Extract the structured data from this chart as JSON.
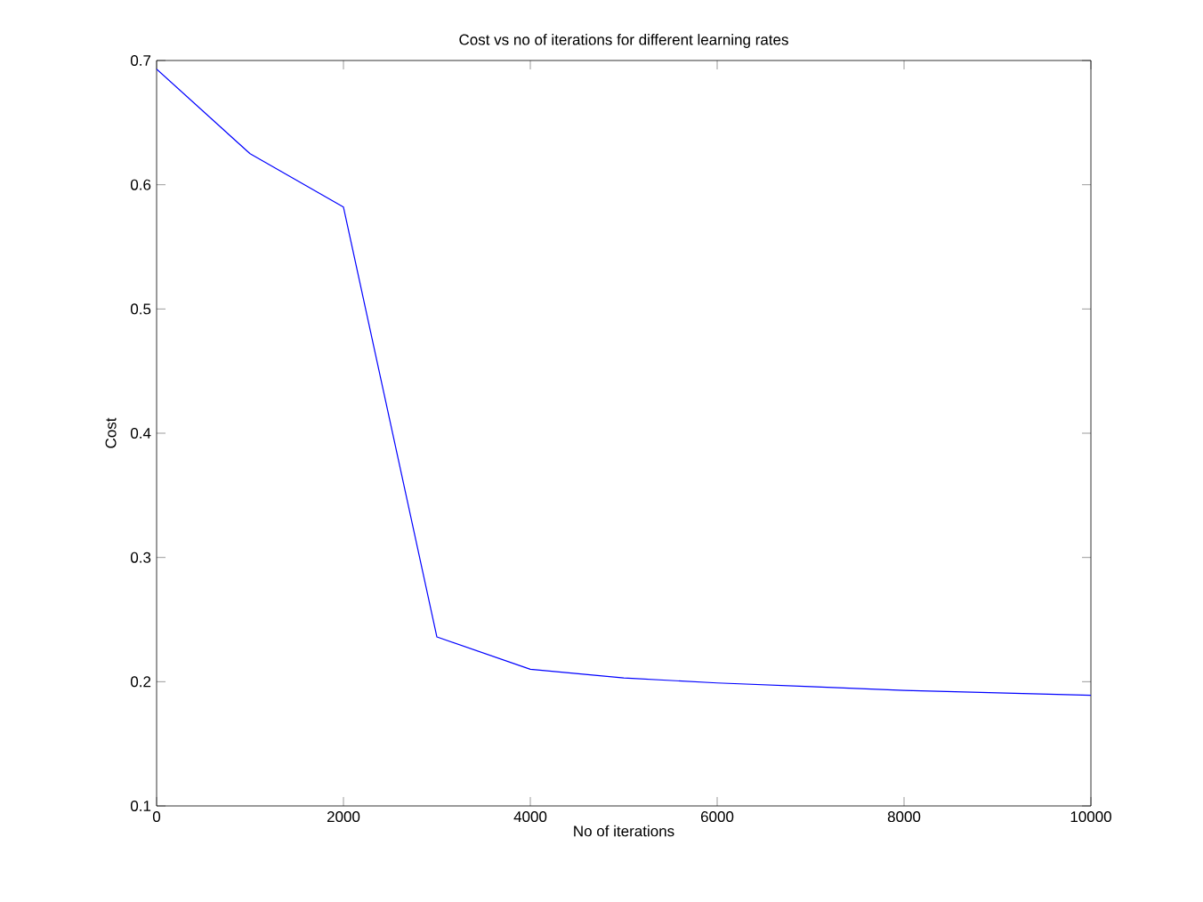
{
  "chart_data": {
    "type": "line",
    "title": "Cost vs no of iterations for different learning rates",
    "xlabel": "No of iterations",
    "ylabel": "Cost",
    "x": [
      0,
      1000,
      2000,
      3000,
      4000,
      5000,
      6000,
      7000,
      8000,
      9000,
      10000
    ],
    "series": [
      {
        "color": "#0000ff",
        "values": [
          0.693,
          0.625,
          0.582,
          0.236,
          0.21,
          0.203,
          0.199,
          0.196,
          0.193,
          0.191,
          0.189
        ]
      }
    ],
    "xlim": [
      0,
      10000
    ],
    "xticks": [
      0,
      2000,
      4000,
      6000,
      8000,
      10000
    ],
    "ylim": [
      0.1,
      0.7
    ],
    "yticks": [
      0.1,
      0.2,
      0.3,
      0.4,
      0.5,
      0.6,
      0.7
    ],
    "marker": "none",
    "line_style": "solid"
  }
}
